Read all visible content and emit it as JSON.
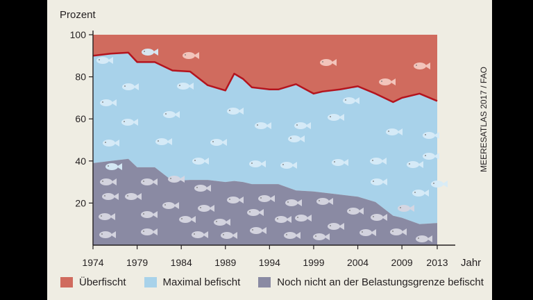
{
  "source_label": "MEERESATLAS 2017 / FAO",
  "colors": {
    "overfished": "#d06b5e",
    "overfished_line": "#b4141e",
    "maximal": "#a8d2ea",
    "not_yet": "#8a8aa3",
    "fish_light": "#ffffff",
    "fish_dark": "#ffffff",
    "panel": "#efede3"
  },
  "chart_data": {
    "type": "area",
    "ylabel": "Prozent",
    "xlabel": "Jahr",
    "ylim": [
      0,
      100
    ],
    "xlim": [
      1974,
      2013
    ],
    "yticks": [
      "20",
      "40",
      "60",
      "80",
      "100"
    ],
    "xticks": [
      "1974",
      "1979",
      "1984",
      "1989",
      "1994",
      "1999",
      "2004",
      "2009",
      "2013"
    ],
    "x": [
      1974,
      1976,
      1978,
      1979,
      1981,
      1983,
      1985,
      1987,
      1989,
      1990,
      1991,
      1992,
      1994,
      1995,
      1997,
      1999,
      2000,
      2002,
      2004,
      2006,
      2008,
      2009,
      2011,
      2013
    ],
    "series": [
      {
        "name": "Noch nicht an der Belastungsgrenze befischt",
        "values": [
          39,
          40,
          41,
          37,
          37,
          30.5,
          31,
          31,
          30,
          30.5,
          30,
          29,
          29,
          29,
          26,
          25.5,
          25,
          24,
          23,
          20.5,
          14,
          13,
          10,
          10.5
        ]
      },
      {
        "name": "Maximal befischt",
        "values": [
          51,
          51,
          50.5,
          50,
          50,
          52.5,
          51.5,
          45,
          43.5,
          51,
          49,
          46,
          45,
          45,
          50.5,
          46.5,
          48,
          50,
          52.5,
          51.5,
          54,
          57,
          62,
          58
        ]
      },
      {
        "name": "Überfischt",
        "values": [
          10,
          9,
          8.5,
          13,
          13,
          17,
          17.5,
          24,
          26.5,
          18.5,
          21,
          25,
          26,
          26,
          23.5,
          28,
          27,
          26,
          24.5,
          28,
          32,
          30,
          28,
          31.5
        ]
      }
    ]
  }
}
